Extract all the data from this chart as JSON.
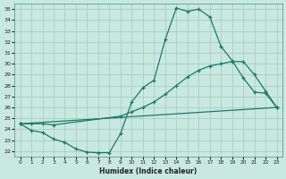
{
  "xlabel": "Humidex (Indice chaleur)",
  "xlim": [
    -0.5,
    23.5
  ],
  "ylim": [
    21.5,
    35.5
  ],
  "yticks": [
    22,
    23,
    24,
    25,
    26,
    27,
    28,
    29,
    30,
    31,
    32,
    33,
    34,
    35
  ],
  "xticks": [
    0,
    1,
    2,
    3,
    4,
    5,
    6,
    7,
    8,
    9,
    10,
    11,
    12,
    13,
    14,
    15,
    16,
    17,
    18,
    19,
    20,
    21,
    22,
    23
  ],
  "bg_color": "#c8e8e0",
  "line_color": "#1a7a6a",
  "grid_color": "#a0ccbc",
  "curve1_x": [
    0,
    1,
    2,
    3,
    4,
    5,
    6,
    7,
    8,
    9,
    10,
    11,
    12,
    13,
    14,
    15,
    16,
    17,
    18,
    19,
    20,
    21,
    22,
    23
  ],
  "curve1_y": [
    24.5,
    23.9,
    23.7,
    23.1,
    22.8,
    22.2,
    21.9,
    21.85,
    21.85,
    23.6,
    26.5,
    27.8,
    28.5,
    32.2,
    35.1,
    34.8,
    35.0,
    34.3,
    31.6,
    30.3,
    28.7,
    27.4,
    27.3,
    26.0
  ],
  "curve2_x": [
    0,
    1,
    2,
    3,
    9,
    10,
    11,
    12,
    13,
    14,
    15,
    16,
    17,
    18,
    19,
    20,
    21,
    22,
    23
  ],
  "curve2_y": [
    24.5,
    24.5,
    24.5,
    24.4,
    25.2,
    25.6,
    26.0,
    26.5,
    27.2,
    28.0,
    28.8,
    29.4,
    29.8,
    30.0,
    30.2,
    30.2,
    29.0,
    27.5,
    26.0
  ],
  "curve3_x": [
    0,
    23
  ],
  "curve3_y": [
    24.5,
    26.0
  ]
}
